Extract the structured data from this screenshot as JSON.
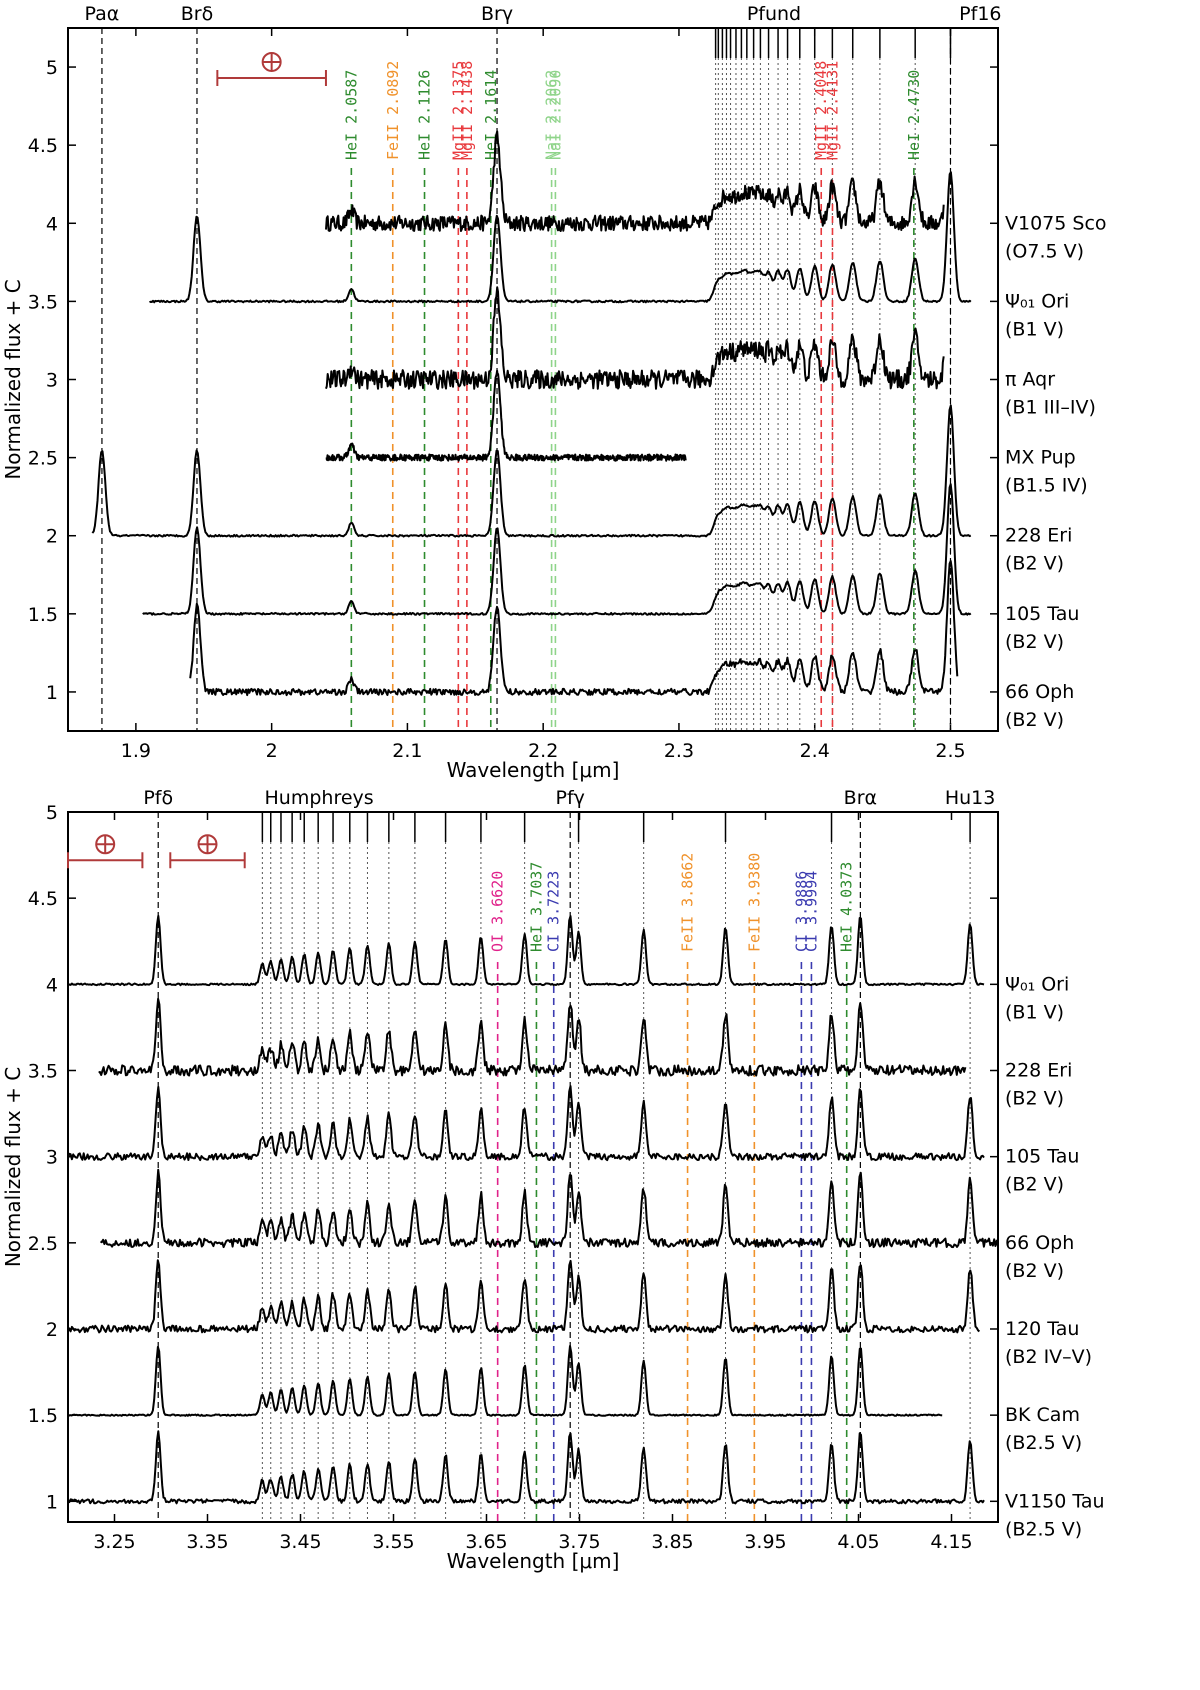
{
  "chart_data": [
    {
      "type": "line",
      "panel": "top",
      "xlabel": "Wavelength [μm]",
      "ylabel": "Normalized flux + C",
      "xlim": [
        1.85,
        2.535
      ],
      "ylim": [
        0.75,
        5.25
      ],
      "xticks": [
        1.9,
        2.0,
        2.1,
        2.2,
        2.3,
        2.4,
        2.5
      ],
      "xtick_labels": [
        "1.9",
        "2",
        "2.1",
        "2.2",
        "2.3",
        "2.4",
        "2.5"
      ],
      "yticks": [
        1,
        1.5,
        2,
        2.5,
        3,
        3.5,
        4,
        4.5,
        5
      ],
      "ytick_labels": [
        "1",
        "1.5",
        "2",
        "2.5",
        "3",
        "3.5",
        "4",
        "4.5",
        "5"
      ],
      "top_labels": [
        {
          "text": "Paα",
          "x": 1.875
        },
        {
          "text": "Brδ",
          "x": 1.945
        },
        {
          "text": "Brγ",
          "x": 2.166
        },
        {
          "text": "Pfund",
          "x": 2.37
        },
        {
          "text": "Pf16",
          "x": 2.522
        }
      ],
      "strong_lines": [
        1.875,
        1.945,
        2.166,
        2.5
      ],
      "pfund_series": [
        2.327,
        2.329,
        2.332,
        2.335,
        2.338,
        2.342,
        2.346,
        2.35,
        2.355,
        2.36,
        2.366,
        2.373,
        2.38,
        2.389,
        2.4,
        2.413,
        2.428,
        2.448,
        2.474,
        2.5
      ],
      "telluric_bar": {
        "x0": 1.96,
        "x1": 2.04,
        "y": 4.93
      },
      "line_ids": [
        {
          "text": "HeI 2.0587",
          "x": 2.0587,
          "color": "#2e8b2e"
        },
        {
          "text": "FeII 2.0892",
          "x": 2.0892,
          "color": "#f0922b"
        },
        {
          "text": "HeI 2.1126",
          "x": 2.1126,
          "color": "#2e8b2e"
        },
        {
          "text": "MgII 2.1375",
          "x": 2.1375,
          "color": "#e8393d"
        },
        {
          "text": "MgII 2.1438",
          "x": 2.1438,
          "color": "#e8393d"
        },
        {
          "text": "HeI 2.1614",
          "x": 2.1614,
          "color": "#2e8b2e"
        },
        {
          "text": "NaI 2.2062",
          "x": 2.2062,
          "color": "#8fd48a"
        },
        {
          "text": "NaI 2.2090",
          "x": 2.209,
          "color": "#8fd48a"
        },
        {
          "text": "MgII 2.4048",
          "x": 2.4048,
          "color": "#e8393d"
        },
        {
          "text": "MgII 2.4131",
          "x": 2.4131,
          "color": "#e8393d"
        },
        {
          "text": "HeI 2.4730",
          "x": 2.473,
          "color": "#2e8b2e"
        }
      ],
      "series": [
        {
          "name": "V1075 Sco",
          "sptype": "(O7.5 V)",
          "offset": 4.0,
          "range": [
            2.04,
            2.495
          ],
          "noise": 0.05
        },
        {
          "name": "Ψ₀₁ Ori",
          "sptype": "(B1 V)",
          "offset": 3.5,
          "range": [
            1.91,
            2.515
          ],
          "noise": 0.006
        },
        {
          "name": "π Aqr",
          "sptype": "(B1 III–IV)",
          "offset": 3.0,
          "range": [
            2.04,
            2.495
          ],
          "noise": 0.06
        },
        {
          "name": "MX Pup",
          "sptype": "(B1.5 IV)",
          "offset": 2.5,
          "range": [
            2.04,
            2.305
          ],
          "noise": 0.02
        },
        {
          "name": "228 Eri",
          "sptype": "(B2 V)",
          "offset": 2.0,
          "range": [
            1.868,
            2.515
          ],
          "noise": 0.006
        },
        {
          "name": "105 Tau",
          "sptype": "(B2 V)",
          "offset": 1.5,
          "range": [
            1.905,
            2.515
          ],
          "noise": 0.006
        },
        {
          "name": "66 Oph",
          "sptype": "(B2 V)",
          "offset": 1.0,
          "range": [
            1.94,
            2.505
          ],
          "noise": 0.02
        }
      ]
    },
    {
      "type": "line",
      "panel": "bottom",
      "xlabel": "Wavelength [μm]",
      "ylabel": "Normalized flux + C",
      "xlim": [
        3.2,
        4.2
      ],
      "ylim": [
        0.88,
        5.0
      ],
      "xticks": [
        3.25,
        3.35,
        3.45,
        3.55,
        3.65,
        3.75,
        3.85,
        3.95,
        4.05,
        4.15
      ],
      "xtick_labels": [
        "3.25",
        "3.35",
        "3.45",
        "3.55",
        "3.65",
        "3.75",
        "3.85",
        "3.95",
        "4.05",
        "4.15"
      ],
      "yticks": [
        1,
        1.5,
        2,
        2.5,
        3,
        3.5,
        4,
        4.5,
        5
      ],
      "ytick_labels": [
        "1",
        "1.5",
        "2",
        "2.5",
        "3",
        "3.5",
        "4",
        "4.5",
        "5"
      ],
      "top_labels": [
        {
          "text": "Pfδ",
          "x": 3.297
        },
        {
          "text": "Humphreys",
          "x": 3.47
        },
        {
          "text": "Pfγ",
          "x": 3.74
        },
        {
          "text": "Brα",
          "x": 4.052
        },
        {
          "text": "Hu13",
          "x": 4.17
        }
      ],
      "strong_lines": [
        3.297,
        3.74,
        4.052
      ],
      "humphreys_series": [
        3.409,
        3.418,
        3.429,
        3.441,
        3.454,
        3.469,
        3.485,
        3.503,
        3.522,
        3.545,
        3.573,
        3.606,
        3.644,
        3.691,
        3.749,
        3.819,
        3.907,
        4.021,
        4.17
      ],
      "telluric_bars": [
        {
          "x0": 3.2,
          "x1": 3.28,
          "y": 4.72
        },
        {
          "x0": 3.31,
          "x1": 3.39,
          "y": 4.72
        }
      ],
      "line_ids": [
        {
          "text": "OI 3.6620",
          "x": 3.662,
          "color": "#e0218a"
        },
        {
          "text": "HeI 3.7037",
          "x": 3.7037,
          "color": "#2e8b2e"
        },
        {
          "text": "CI 3.7223",
          "x": 3.7223,
          "color": "#3b3bb0"
        },
        {
          "text": "FeII 3.8662",
          "x": 3.8662,
          "color": "#f0922b"
        },
        {
          "text": "FeII 3.9380",
          "x": 3.938,
          "color": "#f0922b"
        },
        {
          "text": "CI 3.9886",
          "x": 3.9886,
          "color": "#3b3bb0"
        },
        {
          "text": "CI 3.9994",
          "x": 3.9994,
          "color": "#3b3bb0"
        },
        {
          "text": "HeI 4.0373",
          "x": 4.0373,
          "color": "#2e8b2e"
        }
      ],
      "series": [
        {
          "name": "Ψ₀₁ Ori",
          "sptype": "(B1 V)",
          "offset": 4.0,
          "range": [
            3.2,
            4.185
          ],
          "noise": 0.005
        },
        {
          "name": "228 Eri",
          "sptype": "(B2 V)",
          "offset": 3.5,
          "range": [
            3.233,
            4.165
          ],
          "noise": 0.03
        },
        {
          "name": "105 Tau",
          "sptype": "(B2 V)",
          "offset": 3.0,
          "range": [
            3.2,
            4.185
          ],
          "noise": 0.02
        },
        {
          "name": "66 Oph",
          "sptype": "(B2 V)",
          "offset": 2.5,
          "range": [
            3.235,
            4.2
          ],
          "noise": 0.025
        },
        {
          "name": "120 Tau",
          "sptype": "(B2 IV–V)",
          "offset": 2.0,
          "range": [
            3.2,
            4.18
          ],
          "noise": 0.02
        },
        {
          "name": "BK Cam",
          "sptype": "(B2.5 V)",
          "offset": 1.5,
          "range": [
            3.2,
            4.14
          ],
          "noise": 0.004
        },
        {
          "name": "V1150 Tau",
          "sptype": "(B2.5 V)",
          "offset": 1.0,
          "range": [
            3.2,
            4.185
          ],
          "noise": 0.012
        }
      ]
    }
  ]
}
